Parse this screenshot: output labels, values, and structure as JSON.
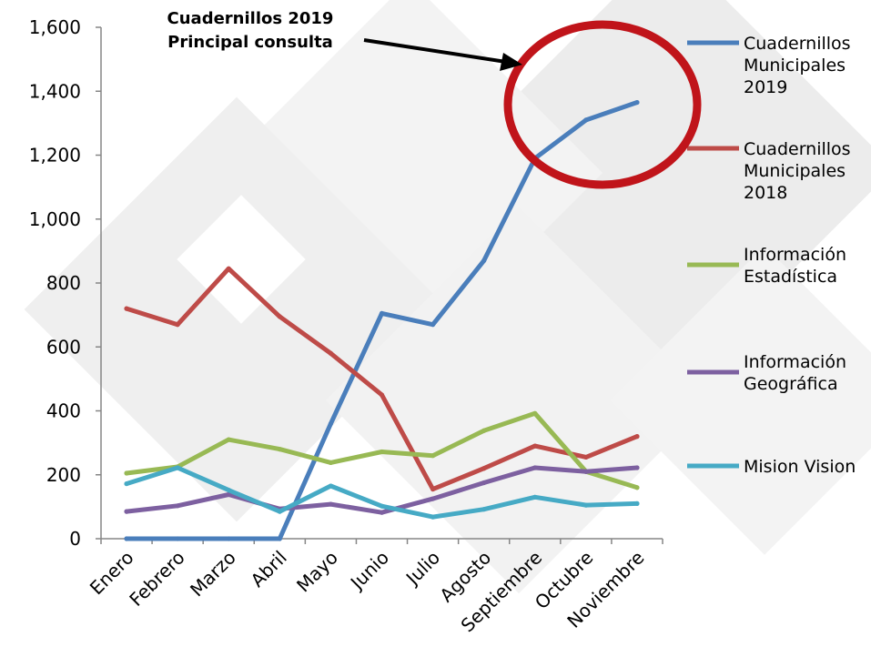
{
  "chart_data": {
    "type": "line",
    "categories": [
      "Enero",
      "Febrero",
      "Marzo",
      "Abril",
      "Mayo",
      "Junio",
      "Julio",
      "Agosto",
      "Septiembre",
      "Octubre",
      "Noviembre"
    ],
    "ylim": [
      0,
      1600
    ],
    "y_ticks": [
      "0",
      "200",
      "400",
      "600",
      "800",
      "1,000",
      "1,200",
      "1,400",
      "1,600"
    ],
    "grid": false,
    "legend_position": "right",
    "series": [
      {
        "name_lines": [
          "Cuadernillos",
          "Municipales",
          "2019"
        ],
        "color": "#4a7ebb",
        "values": [
          0,
          0,
          0,
          0,
          360,
          705,
          670,
          870,
          1190,
          1310,
          1365
        ]
      },
      {
        "name_lines": [
          "Cuadernillos",
          "Municipales",
          "2018"
        ],
        "color": "#be4b48",
        "values": [
          720,
          670,
          845,
          695,
          580,
          450,
          155,
          220,
          290,
          255,
          320
        ]
      },
      {
        "name_lines": [
          "Información",
          "Estadística"
        ],
        "color": "#98b954",
        "values": [
          205,
          225,
          310,
          280,
          238,
          272,
          260,
          338,
          392,
          210,
          160
        ]
      },
      {
        "name_lines": [
          "Información",
          "Geográfica"
        ],
        "color": "#7d60a0",
        "values": [
          85,
          103,
          138,
          93,
          108,
          82,
          125,
          175,
          222,
          210,
          222
        ]
      },
      {
        "name_lines": [
          "Mision Vision"
        ],
        "color": "#46aac5",
        "values": [
          172,
          222,
          152,
          85,
          165,
          102,
          68,
          92,
          130,
          105,
          110
        ]
      }
    ],
    "annotation": {
      "lines": [
        "Cuadernillos 2019",
        "Principal consulta"
      ],
      "circle_color": "#c0141a"
    }
  }
}
